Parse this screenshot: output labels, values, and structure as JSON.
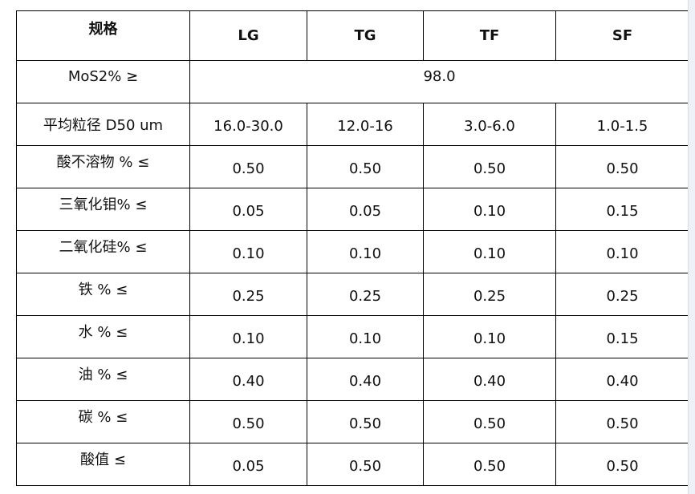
{
  "table": {
    "header": [
      "规格",
      "LG",
      "TG",
      "TF",
      "SF"
    ],
    "mos2": {
      "label": "MoS2% ≥",
      "value": "98.0"
    },
    "rows": [
      {
        "label": "平均粒径 D50 um",
        "values": [
          "16.0-30.0",
          "12.0-16",
          "3.0-6.0",
          "1.0-1.5"
        ]
      },
      {
        "label": "酸不溶物 % ≤",
        "values": [
          "0.50",
          "0.50",
          "0.50",
          "0.50"
        ]
      },
      {
        "label": "三氧化钼% ≤",
        "values": [
          "0.05",
          "0.05",
          "0.10",
          "0.15"
        ]
      },
      {
        "label": "二氧化硅% ≤",
        "values": [
          "0.10",
          "0.10",
          "0.10",
          "0.10"
        ]
      },
      {
        "label": "铁 % ≤",
        "values": [
          "0.25",
          "0.25",
          "0.25",
          "0.25"
        ]
      },
      {
        "label": "水 % ≤",
        "values": [
          "0.10",
          "0.10",
          "0.10",
          "0.15"
        ]
      },
      {
        "label": "油 % ≤",
        "values": [
          "0.40",
          "0.40",
          "0.40",
          "0.40"
        ]
      },
      {
        "label": "碳 % ≤",
        "values": [
          "0.50",
          "0.50",
          "0.50",
          "0.50"
        ]
      },
      {
        "label": "酸值 ≤",
        "values": [
          "0.05",
          "0.50",
          "0.50",
          "0.50"
        ]
      }
    ]
  }
}
